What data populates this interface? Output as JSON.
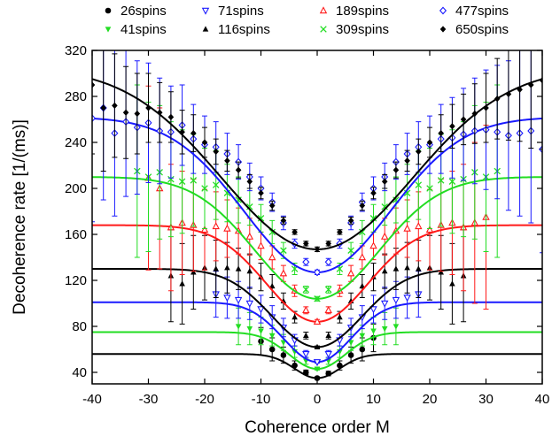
{
  "chart_data": {
    "type": "scatter",
    "title": "",
    "xlabel": "Coherence order M",
    "ylabel": "Decoherence rate [1/(ms)]",
    "xlim": [
      -40,
      40
    ],
    "ylim": [
      30,
      320
    ],
    "xticks": [
      -40,
      -30,
      -20,
      -10,
      0,
      10,
      20,
      30,
      40
    ],
    "yticks": [
      40,
      80,
      120,
      160,
      200,
      240,
      280,
      320
    ],
    "grid": false,
    "legend_position": "top, above plot, 4 columns",
    "series": [
      {
        "name": "26spins",
        "color": "#000000",
        "marker": "filled-circle",
        "fit": {
          "base": 35,
          "plateau": 56,
          "width": 4
        },
        "x": [
          -10,
          -8,
          -6,
          -4,
          -2,
          0,
          2,
          4,
          6,
          8,
          10
        ],
        "y": [
          67,
          60,
          55,
          46,
          40,
          35,
          39,
          46,
          55,
          60,
          70
        ],
        "err": [
          12,
          10,
          7,
          4,
          2,
          1,
          2,
          4,
          7,
          10,
          12
        ]
      },
      {
        "name": "41spins",
        "color": "#22dd22",
        "marker": "filled-triangle-down",
        "fit": {
          "base": 43,
          "plateau": 75,
          "width": 5
        },
        "x": [
          -14,
          -12,
          -10,
          -8,
          -6,
          -4,
          -2,
          0,
          2,
          4,
          6,
          8,
          10,
          12,
          14
        ],
        "y": [
          80,
          78,
          76,
          72,
          66,
          58,
          50,
          43,
          50,
          58,
          66,
          72,
          76,
          78,
          80
        ],
        "err": [
          16,
          14,
          12,
          9,
          7,
          5,
          3,
          1,
          3,
          5,
          7,
          9,
          12,
          14,
          16
        ]
      },
      {
        "name": "71spins",
        "color": "#1a1aff",
        "marker": "open-triangle-down",
        "fit": {
          "base": 49,
          "plateau": 101,
          "width": 6
        },
        "x": [
          -18,
          -16,
          -14,
          -12,
          -10,
          -8,
          -6,
          -4,
          -2,
          0,
          2,
          4,
          6,
          8,
          10,
          12,
          14,
          16,
          18
        ],
        "y": [
          108,
          105,
          103,
          100,
          95,
          88,
          79,
          68,
          56,
          49,
          56,
          68,
          79,
          88,
          95,
          100,
          103,
          105,
          108
        ],
        "err": [
          20,
          18,
          16,
          14,
          12,
          10,
          8,
          5,
          3,
          1,
          3,
          5,
          8,
          10,
          12,
          14,
          16,
          18,
          20
        ]
      },
      {
        "name": "116spins",
        "color": "#000000",
        "marker": "filled-triangle-up",
        "fit": {
          "base": 62,
          "plateau": 130,
          "width": 8
        },
        "x": [
          -26,
          -24,
          -22,
          -20,
          -18,
          -16,
          -14,
          -12,
          -10,
          -8,
          -6,
          -4,
          -2,
          0,
          2,
          4,
          6,
          8,
          10,
          12,
          14,
          16,
          18,
          20,
          22,
          24,
          26
        ],
        "y": [
          124,
          117,
          127,
          131,
          130,
          131,
          130,
          128,
          123,
          115,
          102,
          88,
          72,
          62,
          72,
          88,
          102,
          115,
          123,
          128,
          130,
          131,
          130,
          131,
          127,
          117,
          124
        ],
        "err": [
          40,
          35,
          32,
          28,
          25,
          22,
          18,
          15,
          12,
          10,
          7,
          5,
          3,
          1,
          3,
          5,
          7,
          10,
          12,
          15,
          18,
          22,
          25,
          28,
          32,
          35,
          40
        ]
      },
      {
        "name": "189spins",
        "color": "#ff1a1a",
        "marker": "open-triangle-up",
        "fit": {
          "base": 84,
          "plateau": 168,
          "width": 9
        },
        "x": [
          -30,
          -28,
          -26,
          -24,
          -22,
          -20,
          -18,
          -16,
          -14,
          -12,
          -10,
          -8,
          -6,
          -4,
          -2,
          0,
          2,
          4,
          6,
          8,
          10,
          12,
          14,
          16,
          18,
          20,
          22,
          24,
          26,
          28,
          30
        ],
        "y": [
          209,
          200,
          166,
          170,
          168,
          164,
          167,
          165,
          163,
          158,
          150,
          140,
          126,
          111,
          94,
          84,
          94,
          111,
          126,
          140,
          150,
          158,
          163,
          165,
          167,
          164,
          168,
          170,
          166,
          170,
          175
        ],
        "err": [
          80,
          70,
          55,
          45,
          40,
          35,
          30,
          25,
          20,
          16,
          12,
          10,
          7,
          5,
          3,
          2,
          3,
          5,
          7,
          10,
          12,
          16,
          20,
          25,
          30,
          35,
          40,
          45,
          55,
          70,
          80
        ]
      },
      {
        "name": "309spins",
        "color": "#22dd22",
        "marker": "x-cross",
        "fit": {
          "base": 104,
          "plateau": 210,
          "width": 11
        },
        "x": [
          -32,
          -30,
          -28,
          -26,
          -24,
          -22,
          -20,
          -18,
          -16,
          -14,
          -12,
          -10,
          -8,
          -6,
          -4,
          -2,
          0,
          2,
          4,
          6,
          8,
          10,
          12,
          14,
          16,
          18,
          20,
          22,
          24,
          26,
          28,
          30,
          32
        ],
        "y": [
          215,
          210,
          214,
          208,
          206,
          207,
          200,
          203,
          196,
          190,
          184,
          174,
          162,
          146,
          130,
          112,
          104,
          112,
          130,
          146,
          162,
          174,
          184,
          190,
          196,
          203,
          200,
          207,
          206,
          208,
          214,
          210,
          215
        ],
        "err": [
          75,
          65,
          58,
          50,
          45,
          40,
          35,
          30,
          25,
          20,
          16,
          12,
          10,
          7,
          5,
          3,
          2,
          3,
          5,
          7,
          10,
          12,
          16,
          20,
          25,
          30,
          35,
          40,
          45,
          50,
          58,
          65,
          75
        ]
      },
      {
        "name": "477spins",
        "color": "#1a1aff",
        "marker": "open-diamond",
        "fit": {
          "base": 127,
          "plateau": 262,
          "width": 13
        },
        "x": [
          -40,
          -38,
          -36,
          -34,
          -32,
          -30,
          -28,
          -26,
          -24,
          -22,
          -20,
          -18,
          -16,
          -14,
          -12,
          -10,
          -8,
          -6,
          -4,
          -2,
          0,
          2,
          4,
          6,
          8,
          10,
          12,
          14,
          16,
          18,
          20,
          22,
          24,
          26,
          28,
          30,
          32,
          34,
          36,
          38,
          40
        ],
        "y": [
          261,
          270,
          248,
          258,
          253,
          257,
          250,
          249,
          255,
          243,
          238,
          236,
          230,
          223,
          210,
          200,
          188,
          170,
          152,
          136,
          127,
          136,
          152,
          170,
          188,
          200,
          210,
          223,
          230,
          236,
          238,
          243,
          244,
          247,
          250,
          251,
          249,
          246,
          248,
          250,
          234
        ],
        "err": [
          90,
          80,
          72,
          65,
          58,
          52,
          46,
          40,
          35,
          30,
          25,
          22,
          18,
          15,
          12,
          10,
          8,
          6,
          4,
          3,
          2,
          3,
          4,
          6,
          8,
          10,
          12,
          15,
          18,
          22,
          25,
          30,
          35,
          40,
          46,
          52,
          58,
          65,
          72,
          80,
          90
        ]
      },
      {
        "name": "650spins",
        "color": "#000000",
        "marker": "filled-diamond",
        "fit": {
          "base": 147,
          "plateau": 305,
          "width": 17
        },
        "x": [
          -40,
          -38,
          -36,
          -34,
          -32,
          -30,
          -28,
          -26,
          -24,
          -22,
          -20,
          -18,
          -16,
          -14,
          -12,
          -10,
          -8,
          -6,
          -4,
          -2,
          0,
          2,
          4,
          6,
          8,
          10,
          12,
          14,
          16,
          18,
          20,
          22,
          24,
          26,
          28,
          30,
          32,
          34,
          36,
          38,
          40
        ],
        "y": [
          290,
          270,
          272,
          266,
          265,
          270,
          266,
          262,
          249,
          248,
          240,
          232,
          224,
          216,
          206,
          196,
          185,
          172,
          162,
          152,
          147,
          152,
          162,
          172,
          185,
          196,
          206,
          216,
          224,
          232,
          240,
          248,
          254,
          260,
          265,
          270,
          278,
          282,
          286,
          290,
          294
        ],
        "err": [
          60,
          55,
          45,
          40,
          35,
          30,
          26,
          22,
          19,
          16,
          13,
          11,
          9,
          7,
          6,
          5,
          4,
          3,
          2,
          2,
          2,
          2,
          2,
          3,
          4,
          5,
          6,
          7,
          9,
          11,
          13,
          16,
          19,
          22,
          26,
          30,
          35,
          40,
          45,
          55,
          60
        ]
      }
    ],
    "legend_order": [
      "26spins",
      "71spins",
      "189spins",
      "477spins",
      "41spins",
      "116spins",
      "309spins",
      "650spins"
    ]
  }
}
